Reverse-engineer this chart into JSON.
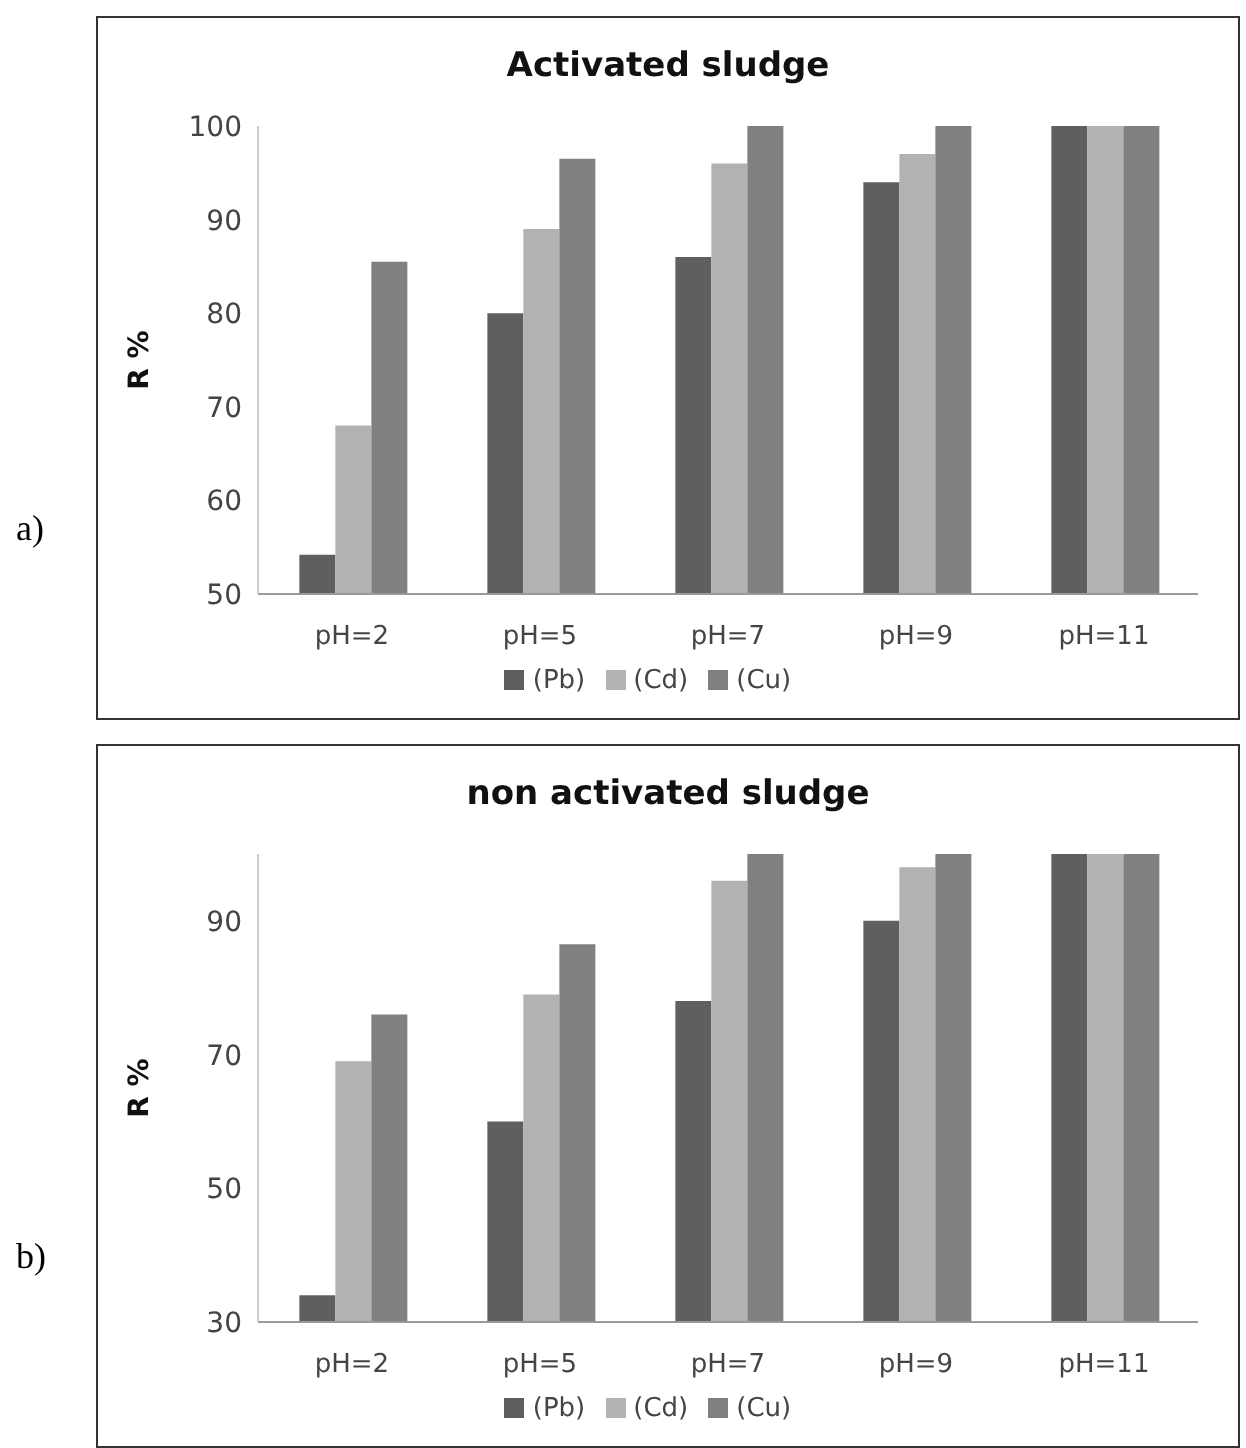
{
  "chart_data": [
    {
      "type": "bar",
      "title": "Activated sludge",
      "ylabel": "R %",
      "annotations": [
        "a)"
      ],
      "categories": [
        "pH=2",
        "pH=5",
        "pH=7",
        "pH=9",
        "pH=11"
      ],
      "series": [
        {
          "name": "(Pb)",
          "color": "#5f5f5f",
          "values": [
            54.2,
            80,
            86,
            94,
            100
          ]
        },
        {
          "name": "(Cd)",
          "color": "#b2b2b2",
          "values": [
            68,
            89,
            96,
            97,
            100
          ]
        },
        {
          "name": "(Cu)",
          "color": "#808080",
          "values": [
            85.5,
            96.5,
            100,
            100,
            100
          ]
        }
      ],
      "ylim": [
        50,
        100
      ],
      "yticks": [
        50,
        60,
        70,
        80,
        90,
        100
      ],
      "grid": false,
      "legend": "bottom"
    },
    {
      "type": "bar",
      "title": "non activated sludge",
      "ylabel": "R %",
      "annotations": [
        "b)"
      ],
      "categories": [
        "pH=2",
        "pH=5",
        "pH=7",
        "pH=9",
        "pH=11"
      ],
      "series": [
        {
          "name": "(Pb)",
          "color": "#5f5f5f",
          "values": [
            34,
            60,
            78,
            90,
            100
          ]
        },
        {
          "name": "(Cd)",
          "color": "#b2b2b2",
          "values": [
            69,
            79,
            96,
            98,
            100
          ]
        },
        {
          "name": "(Cu)",
          "color": "#808080",
          "values": [
            76,
            86.5,
            100,
            100,
            100
          ]
        }
      ],
      "ylim": [
        30,
        100
      ],
      "yticks": [
        30,
        50,
        70,
        90
      ],
      "grid": false,
      "legend": "bottom"
    }
  ]
}
